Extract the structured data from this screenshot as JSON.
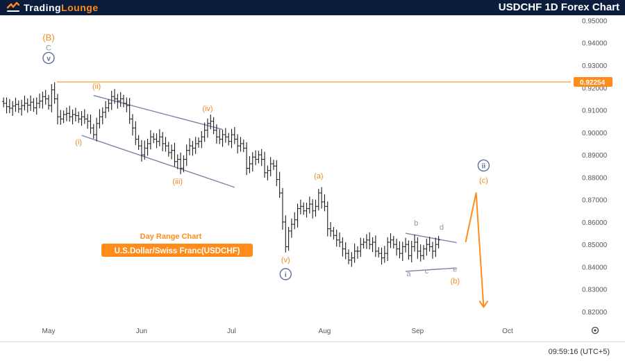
{
  "header": {
    "logo_prefix": "Trading",
    "logo_suffix": "Lounge",
    "title": "USDCHF 1D Forex Chart"
  },
  "footer": {
    "time": "09:59:16 (UTC+5)"
  },
  "colors": {
    "navy": "#0b1c3d",
    "orange": "#ff8c1a",
    "wave_orange": "#f08a24",
    "channel": "#7b84a6",
    "circle": "#5d6f9a",
    "gray_label": "#8e95a5",
    "candle": "#1a1a1a"
  },
  "chart_data": {
    "type": "ohlc",
    "symbol": "USDCHF",
    "ylim": [
      0.8135,
      0.9523
    ],
    "y_ticks": [
      "0.95000",
      "0.94000",
      "0.93000",
      "0.92000",
      "0.91000",
      "0.90000",
      "0.89000",
      "0.88000",
      "0.87000",
      "0.86000",
      "0.85000",
      "0.84000",
      "0.83000",
      "0.82000"
    ],
    "price_line": 0.92254,
    "price_label": "0.92254",
    "x_labels": [
      {
        "label": "May",
        "day": 0
      },
      {
        "label": "Jun",
        "day": 31
      },
      {
        "label": "Jul",
        "day": 61
      },
      {
        "label": "Aug",
        "day": 92
      },
      {
        "label": "Sep",
        "day": 123
      },
      {
        "label": "Oct",
        "day": 153
      }
    ],
    "closes": [
      [
        -15,
        0.913
      ],
      [
        -14,
        0.9115
      ],
      [
        -13,
        0.9108
      ],
      [
        -12,
        0.9118
      ],
      [
        -11,
        0.9125
      ],
      [
        -10,
        0.9105
      ],
      [
        -9,
        0.912
      ],
      [
        -8,
        0.913
      ],
      [
        -7,
        0.9122
      ],
      [
        -6,
        0.9135
      ],
      [
        -5,
        0.911
      ],
      [
        -4,
        0.913
      ],
      [
        -3,
        0.914
      ],
      [
        -2,
        0.916
      ],
      [
        -1,
        0.915
      ],
      [
        0,
        0.912
      ],
      [
        1,
        0.919
      ],
      [
        2,
        0.915
      ],
      [
        3,
        0.907
      ],
      [
        4,
        0.906
      ],
      [
        5,
        0.908
      ],
      [
        6,
        0.9085
      ],
      [
        7,
        0.907
      ],
      [
        8,
        0.908
      ],
      [
        9,
        0.9075
      ],
      [
        10,
        0.906
      ],
      [
        11,
        0.907
      ],
      [
        12,
        0.906
      ],
      [
        13,
        0.905
      ],
      [
        14,
        0.902
      ],
      [
        15,
        0.899
      ],
      [
        16,
        0.904
      ],
      [
        17,
        0.907
      ],
      [
        18,
        0.909
      ],
      [
        19,
        0.911
      ],
      [
        20,
        0.913
      ],
      [
        21,
        0.916
      ],
      [
        22,
        0.915
      ],
      [
        23,
        0.914
      ],
      [
        24,
        0.915
      ],
      [
        25,
        0.913
      ],
      [
        26,
        0.912
      ],
      [
        27,
        0.906
      ],
      [
        28,
        0.902
      ],
      [
        29,
        0.897
      ],
      [
        30,
        0.894
      ],
      [
        31,
        0.89
      ],
      [
        32,
        0.893
      ],
      [
        33,
        0.895
      ],
      [
        34,
        0.898
      ],
      [
        35,
        0.897
      ],
      [
        36,
        0.896
      ],
      [
        37,
        0.898
      ],
      [
        38,
        0.895
      ],
      [
        39,
        0.894
      ],
      [
        40,
        0.891
      ],
      [
        41,
        0.892
      ],
      [
        42,
        0.887
      ],
      [
        43,
        0.888
      ],
      [
        44,
        0.884
      ],
      [
        45,
        0.888
      ],
      [
        46,
        0.892
      ],
      [
        47,
        0.894
      ],
      [
        48,
        0.893
      ],
      [
        49,
        0.895
      ],
      [
        50,
        0.896
      ],
      [
        51,
        0.898
      ],
      [
        52,
        0.901
      ],
      [
        53,
        0.904
      ],
      [
        54,
        0.905
      ],
      [
        55,
        0.901
      ],
      [
        56,
        0.898
      ],
      [
        57,
        0.897
      ],
      [
        58,
        0.899
      ],
      [
        59,
        0.898
      ],
      [
        60,
        0.896
      ],
      [
        61,
        0.899
      ],
      [
        62,
        0.897
      ],
      [
        63,
        0.894
      ],
      [
        64,
        0.895
      ],
      [
        65,
        0.893
      ],
      [
        66,
        0.884
      ],
      [
        67,
        0.886
      ],
      [
        68,
        0.889
      ],
      [
        69,
        0.888
      ],
      [
        70,
        0.89
      ],
      [
        71,
        0.888
      ],
      [
        72,
        0.882
      ],
      [
        73,
        0.883
      ],
      [
        74,
        0.886
      ],
      [
        75,
        0.885
      ],
      [
        76,
        0.879
      ],
      [
        77,
        0.873
      ],
      [
        78,
        0.86
      ],
      [
        79,
        0.849
      ],
      [
        80,
        0.856
      ],
      [
        81,
        0.859
      ],
      [
        82,
        0.861
      ],
      [
        83,
        0.866
      ],
      [
        84,
        0.867
      ],
      [
        85,
        0.865
      ],
      [
        86,
        0.866
      ],
      [
        87,
        0.868
      ],
      [
        88,
        0.865
      ],
      [
        89,
        0.867
      ],
      [
        90,
        0.873
      ],
      [
        91,
        0.869
      ],
      [
        92,
        0.867
      ],
      [
        93,
        0.857
      ],
      [
        94,
        0.856
      ],
      [
        95,
        0.854
      ],
      [
        96,
        0.852
      ],
      [
        97,
        0.851
      ],
      [
        98,
        0.848
      ],
      [
        99,
        0.846
      ],
      [
        100,
        0.843
      ],
      [
        101,
        0.844
      ],
      [
        102,
        0.847
      ],
      [
        103,
        0.847
      ],
      [
        104,
        0.85
      ],
      [
        105,
        0.851
      ],
      [
        106,
        0.852
      ],
      [
        107,
        0.85
      ],
      [
        108,
        0.851
      ],
      [
        109,
        0.847
      ],
      [
        110,
        0.846
      ],
      [
        111,
        0.844
      ],
      [
        112,
        0.846
      ],
      [
        113,
        0.851
      ],
      [
        114,
        0.852
      ],
      [
        115,
        0.85
      ],
      [
        116,
        0.848
      ],
      [
        117,
        0.846
      ],
      [
        118,
        0.849
      ],
      [
        119,
        0.85
      ],
      [
        120,
        0.845
      ],
      [
        121,
        0.849
      ],
      [
        122,
        0.851
      ],
      [
        123,
        0.847
      ],
      [
        124,
        0.845
      ],
      [
        125,
        0.848
      ],
      [
        126,
        0.85
      ],
      [
        127,
        0.849
      ],
      [
        128,
        0.847
      ],
      [
        129,
        0.85
      ],
      [
        130,
        0.852
      ]
    ],
    "channel_lines": [
      {
        "x1": 15,
        "y1": 0.9165,
        "x2": 58,
        "y2": 0.9013
      },
      {
        "x1": 11,
        "y1": 0.8987,
        "x2": 62,
        "y2": 0.8755
      },
      {
        "x1": 119,
        "y1": 0.855,
        "x2": 136,
        "y2": 0.8508
      },
      {
        "x1": 119,
        "y1": 0.838,
        "x2": 136,
        "y2": 0.8395
      }
    ],
    "projection": [
      {
        "x": 139,
        "y": 0.851
      },
      {
        "x": 142.5,
        "y": 0.873
      },
      {
        "x": 145,
        "y": 0.822
      }
    ],
    "wave_labels": [
      {
        "text": "(B)",
        "x": 0,
        "y": 0.941,
        "color": "orange",
        "size": 13
      },
      {
        "text": "C",
        "x": 0,
        "y": 0.9366,
        "color": "gray",
        "size": 11
      },
      {
        "text": "v",
        "x": 0,
        "y": 0.932,
        "color": "circle",
        "size": 10,
        "circled": true
      },
      {
        "text": "(ii)",
        "x": 16,
        "y": 0.9195,
        "color": "orange",
        "size": 11
      },
      {
        "text": "(i)",
        "x": 10,
        "y": 0.8945,
        "color": "orange",
        "size": 11
      },
      {
        "text": "(iii)",
        "x": 43,
        "y": 0.877,
        "color": "orange",
        "size": 11
      },
      {
        "text": "(iv)",
        "x": 53,
        "y": 0.9095,
        "color": "orange",
        "size": 11
      },
      {
        "text": "(v)",
        "x": 79,
        "y": 0.842,
        "color": "orange",
        "size": 11
      },
      {
        "text": "i",
        "x": 79,
        "y": 0.8355,
        "color": "circle",
        "size": 10,
        "circled": true
      },
      {
        "text": "(a)",
        "x": 90,
        "y": 0.8795,
        "color": "orange",
        "size": 11
      },
      {
        "text": "a",
        "x": 120,
        "y": 0.8358,
        "color": "gray",
        "size": 11
      },
      {
        "text": "b",
        "x": 122.5,
        "y": 0.8585,
        "color": "gray",
        "size": 11
      },
      {
        "text": "c",
        "x": 126,
        "y": 0.837,
        "color": "gray",
        "size": 11
      },
      {
        "text": "d",
        "x": 131,
        "y": 0.8565,
        "color": "gray",
        "size": 11
      },
      {
        "text": "e",
        "x": 135.5,
        "y": 0.8378,
        "color": "gray",
        "size": 11
      },
      {
        "text": "(b)",
        "x": 135.5,
        "y": 0.8325,
        "color": "orange",
        "size": 11
      },
      {
        "text": "ii",
        "x": 145,
        "y": 0.884,
        "color": "circle",
        "size": 10,
        "circled": true
      },
      {
        "text": "(c)",
        "x": 145,
        "y": 0.8775,
        "color": "orange",
        "size": 11
      }
    ],
    "annotation": {
      "subtitle": "Day Range Chart",
      "badge": "U.S.Dollar/Swiss Franc(USDCHF)"
    }
  }
}
